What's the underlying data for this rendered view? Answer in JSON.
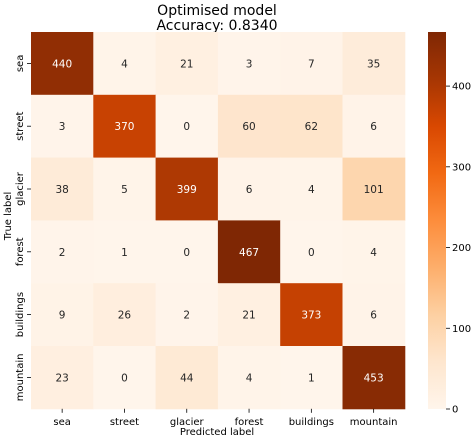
{
  "chart_data": {
    "type": "heatmap",
    "title": "Optimised model",
    "subtitle": "Accuracy: 0.8340",
    "xlabel": "Predicted label",
    "ylabel": "True label",
    "x_categories": [
      "sea",
      "street",
      "glacier",
      "forest",
      "buildings",
      "mountain"
    ],
    "y_categories": [
      "sea",
      "street",
      "glacier",
      "forest",
      "buildings",
      "mountain"
    ],
    "values": [
      [
        440,
        4,
        21,
        3,
        7,
        35
      ],
      [
        3,
        370,
        0,
        60,
        62,
        6
      ],
      [
        38,
        5,
        399,
        6,
        4,
        101
      ],
      [
        2,
        1,
        0,
        467,
        0,
        4
      ],
      [
        9,
        26,
        2,
        21,
        373,
        6
      ],
      [
        23,
        0,
        44,
        4,
        1,
        453
      ]
    ],
    "colorbar": {
      "colormap": "Oranges",
      "range": [
        0,
        467
      ],
      "ticks": [
        0,
        100,
        200,
        300,
        400
      ]
    },
    "colors": {
      "low": "#fff5eb",
      "high": "#7f2704"
    }
  }
}
